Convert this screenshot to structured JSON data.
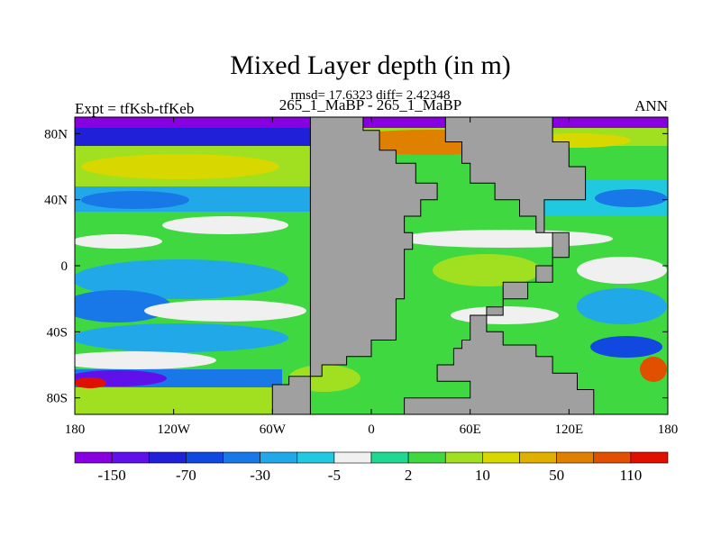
{
  "chart_data": {
    "type": "heatmap",
    "title": "Mixed Layer depth (in m)",
    "stats_line": "rmsd= 17.6323 diff= 2.42348",
    "subtitle": "265_1_MaBP - 265_1_MaBP",
    "left_label": "Expt = tfKsb-tfKeb",
    "right_label": "ANN",
    "xlabel": "",
    "ylabel": "",
    "xlim": [
      -180,
      180
    ],
    "ylim": [
      -90,
      90
    ],
    "x_ticks": [
      {
        "value": -180,
        "label": "180"
      },
      {
        "value": -120,
        "label": "120W"
      },
      {
        "value": -60,
        "label": "60W"
      },
      {
        "value": 0,
        "label": "0"
      },
      {
        "value": 60,
        "label": "60E"
      },
      {
        "value": 120,
        "label": "120E"
      },
      {
        "value": 180,
        "label": "180"
      }
    ],
    "y_ticks": [
      {
        "value": 80,
        "label": "80N"
      },
      {
        "value": 40,
        "label": "40N"
      },
      {
        "value": 0,
        "label": "0"
      },
      {
        "value": -40,
        "label": "40S"
      },
      {
        "value": -80,
        "label": "80S"
      }
    ],
    "colorbar": {
      "colors": [
        "#8800e0",
        "#6010e8",
        "#2020d8",
        "#1048e0",
        "#1878e8",
        "#20a8e8",
        "#20c8e0",
        "#f0f0f0",
        "#20d890",
        "#40d840",
        "#a0e020",
        "#d8d800",
        "#e0b000",
        "#e08000",
        "#e05000",
        "#e01000"
      ],
      "labels": [
        {
          "index": 1,
          "text": "-150"
        },
        {
          "index": 3,
          "text": "-70"
        },
        {
          "index": 5,
          "text": "-30"
        },
        {
          "index": 7,
          "text": "-5"
        },
        {
          "index": 9,
          "text": "2"
        },
        {
          "index": 11,
          "text": "10"
        },
        {
          "index": 13,
          "text": "50"
        },
        {
          "index": 15,
          "text": "110"
        }
      ]
    },
    "land_color": "#a0a0a0",
    "continents": [
      {
        "name": "pangea-west",
        "points": [
          [
            -37,
            90
          ],
          [
            -5,
            90
          ],
          [
            -5,
            82
          ],
          [
            5,
            82
          ],
          [
            5,
            70
          ],
          [
            15,
            70
          ],
          [
            15,
            62
          ],
          [
            27,
            62
          ],
          [
            27,
            50
          ],
          [
            40,
            50
          ],
          [
            40,
            40
          ],
          [
            30,
            40
          ],
          [
            30,
            30
          ],
          [
            20,
            30
          ],
          [
            20,
            20
          ],
          [
            25,
            20
          ],
          [
            25,
            10
          ],
          [
            20,
            10
          ],
          [
            20,
            -20
          ],
          [
            15,
            -20
          ],
          [
            15,
            -45
          ],
          [
            0,
            -45
          ],
          [
            0,
            -55
          ],
          [
            -15,
            -55
          ],
          [
            -15,
            -60
          ],
          [
            -30,
            -60
          ],
          [
            -30,
            -67
          ],
          [
            -50,
            -67
          ],
          [
            -50,
            -72
          ],
          [
            -60,
            -72
          ],
          [
            -60,
            -80
          ],
          [
            -60,
            -90
          ],
          [
            -37,
            -90
          ]
        ]
      },
      {
        "name": "pangea-east",
        "points": [
          [
            45,
            90
          ],
          [
            45,
            75
          ],
          [
            55,
            75
          ],
          [
            55,
            62
          ],
          [
            60,
            62
          ],
          [
            60,
            50
          ],
          [
            75,
            50
          ],
          [
            75,
            40
          ],
          [
            90,
            40
          ],
          [
            90,
            30
          ],
          [
            100,
            30
          ],
          [
            100,
            20
          ],
          [
            110,
            20
          ],
          [
            110,
            0
          ],
          [
            100,
            0
          ],
          [
            100,
            -10
          ],
          [
            80,
            -10
          ],
          [
            80,
            -25
          ],
          [
            70,
            -25
          ],
          [
            70,
            -30
          ],
          [
            60,
            -30
          ],
          [
            60,
            -45
          ],
          [
            55,
            -45
          ],
          [
            55,
            -50
          ],
          [
            50,
            -50
          ],
          [
            50,
            -60
          ],
          [
            40,
            -60
          ],
          [
            40,
            -70
          ],
          [
            60,
            -70
          ],
          [
            60,
            -80
          ],
          [
            20,
            -80
          ],
          [
            20,
            -90
          ],
          [
            135,
            -90
          ],
          [
            135,
            -75
          ],
          [
            125,
            -75
          ],
          [
            125,
            -65
          ],
          [
            110,
            -65
          ],
          [
            110,
            -55
          ],
          [
            100,
            -55
          ],
          [
            100,
            -48
          ],
          [
            80,
            -48
          ],
          [
            80,
            -40
          ],
          [
            70,
            -40
          ],
          [
            70,
            -30
          ],
          [
            80,
            -30
          ],
          [
            80,
            -20
          ],
          [
            95,
            -20
          ],
          [
            95,
            -10
          ],
          [
            110,
            -10
          ],
          [
            110,
            5
          ],
          [
            120,
            5
          ],
          [
            120,
            20
          ],
          [
            105,
            20
          ],
          [
            105,
            40
          ],
          [
            130,
            40
          ],
          [
            130,
            60
          ],
          [
            120,
            60
          ],
          [
            120,
            75
          ],
          [
            110,
            75
          ],
          [
            110,
            90
          ]
        ]
      }
    ]
  }
}
